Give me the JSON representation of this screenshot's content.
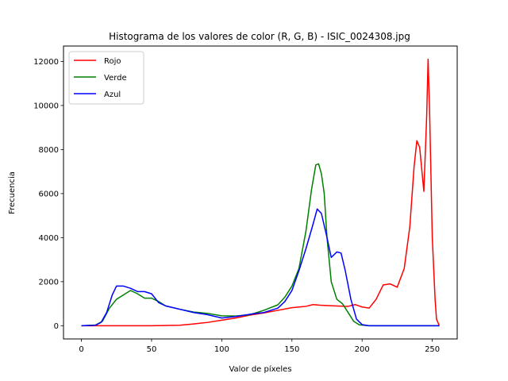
{
  "chart_data": {
    "type": "line",
    "title": "Histograma de los valores de color (R, G, B) - ISIC_0024308.jpg",
    "xlabel": "Valor de píxeles",
    "ylabel": "Frecuencia",
    "xlim": [
      -12.75,
      267.75
    ],
    "ylim": [
      -600,
      12700
    ],
    "xticks": [
      0,
      50,
      100,
      150,
      200,
      250
    ],
    "yticks": [
      0,
      2000,
      4000,
      6000,
      8000,
      10000,
      12000
    ],
    "grid": false,
    "legend_position": "top-left",
    "series": [
      {
        "name": "Rojo",
        "color": "#ff0000",
        "points": [
          [
            0,
            0
          ],
          [
            50,
            0
          ],
          [
            70,
            20
          ],
          [
            80,
            80
          ],
          [
            90,
            150
          ],
          [
            100,
            250
          ],
          [
            110,
            350
          ],
          [
            120,
            480
          ],
          [
            130,
            580
          ],
          [
            140,
            700
          ],
          [
            150,
            820
          ],
          [
            160,
            880
          ],
          [
            165,
            960
          ],
          [
            170,
            930
          ],
          [
            180,
            900
          ],
          [
            190,
            880
          ],
          [
            195,
            960
          ],
          [
            200,
            850
          ],
          [
            205,
            800
          ],
          [
            210,
            1200
          ],
          [
            215,
            1850
          ],
          [
            220,
            1900
          ],
          [
            225,
            1750
          ],
          [
            230,
            2600
          ],
          [
            234,
            4500
          ],
          [
            237,
            7200
          ],
          [
            239,
            8400
          ],
          [
            241,
            8100
          ],
          [
            244,
            6100
          ],
          [
            246,
            9500
          ],
          [
            247,
            12100
          ],
          [
            248,
            10000
          ],
          [
            250,
            4000
          ],
          [
            252,
            1200
          ],
          [
            253,
            300
          ],
          [
            255,
            0
          ]
        ]
      },
      {
        "name": "Verde",
        "color": "#008000",
        "points": [
          [
            0,
            0
          ],
          [
            10,
            30
          ],
          [
            15,
            200
          ],
          [
            20,
            800
          ],
          [
            25,
            1200
          ],
          [
            30,
            1400
          ],
          [
            35,
            1600
          ],
          [
            40,
            1450
          ],
          [
            45,
            1250
          ],
          [
            50,
            1250
          ],
          [
            55,
            1100
          ],
          [
            60,
            900
          ],
          [
            70,
            750
          ],
          [
            80,
            620
          ],
          [
            90,
            560
          ],
          [
            100,
            450
          ],
          [
            110,
            440
          ],
          [
            120,
            500
          ],
          [
            130,
            700
          ],
          [
            140,
            950
          ],
          [
            145,
            1300
          ],
          [
            150,
            1800
          ],
          [
            155,
            2600
          ],
          [
            160,
            4300
          ],
          [
            164,
            6200
          ],
          [
            167,
            7300
          ],
          [
            169,
            7350
          ],
          [
            171,
            6900
          ],
          [
            173,
            6000
          ],
          [
            175,
            4000
          ],
          [
            178,
            2000
          ],
          [
            182,
            1200
          ],
          [
            186,
            1000
          ],
          [
            190,
            600
          ],
          [
            194,
            200
          ],
          [
            198,
            40
          ],
          [
            205,
            0
          ],
          [
            255,
            0
          ]
        ]
      },
      {
        "name": "Azul",
        "color": "#0000ff",
        "points": [
          [
            0,
            0
          ],
          [
            10,
            20
          ],
          [
            14,
            150
          ],
          [
            18,
            600
          ],
          [
            22,
            1400
          ],
          [
            25,
            1800
          ],
          [
            30,
            1800
          ],
          [
            35,
            1700
          ],
          [
            40,
            1550
          ],
          [
            45,
            1550
          ],
          [
            50,
            1450
          ],
          [
            55,
            1050
          ],
          [
            60,
            900
          ],
          [
            70,
            750
          ],
          [
            80,
            600
          ],
          [
            90,
            500
          ],
          [
            100,
            350
          ],
          [
            110,
            420
          ],
          [
            120,
            520
          ],
          [
            130,
            600
          ],
          [
            140,
            800
          ],
          [
            145,
            1100
          ],
          [
            150,
            1600
          ],
          [
            155,
            2500
          ],
          [
            160,
            3500
          ],
          [
            165,
            4600
          ],
          [
            168,
            5300
          ],
          [
            171,
            5100
          ],
          [
            175,
            4000
          ],
          [
            178,
            3100
          ],
          [
            182,
            3350
          ],
          [
            185,
            3300
          ],
          [
            188,
            2500
          ],
          [
            192,
            1200
          ],
          [
            196,
            300
          ],
          [
            200,
            50
          ],
          [
            205,
            0
          ],
          [
            255,
            0
          ]
        ]
      }
    ]
  }
}
